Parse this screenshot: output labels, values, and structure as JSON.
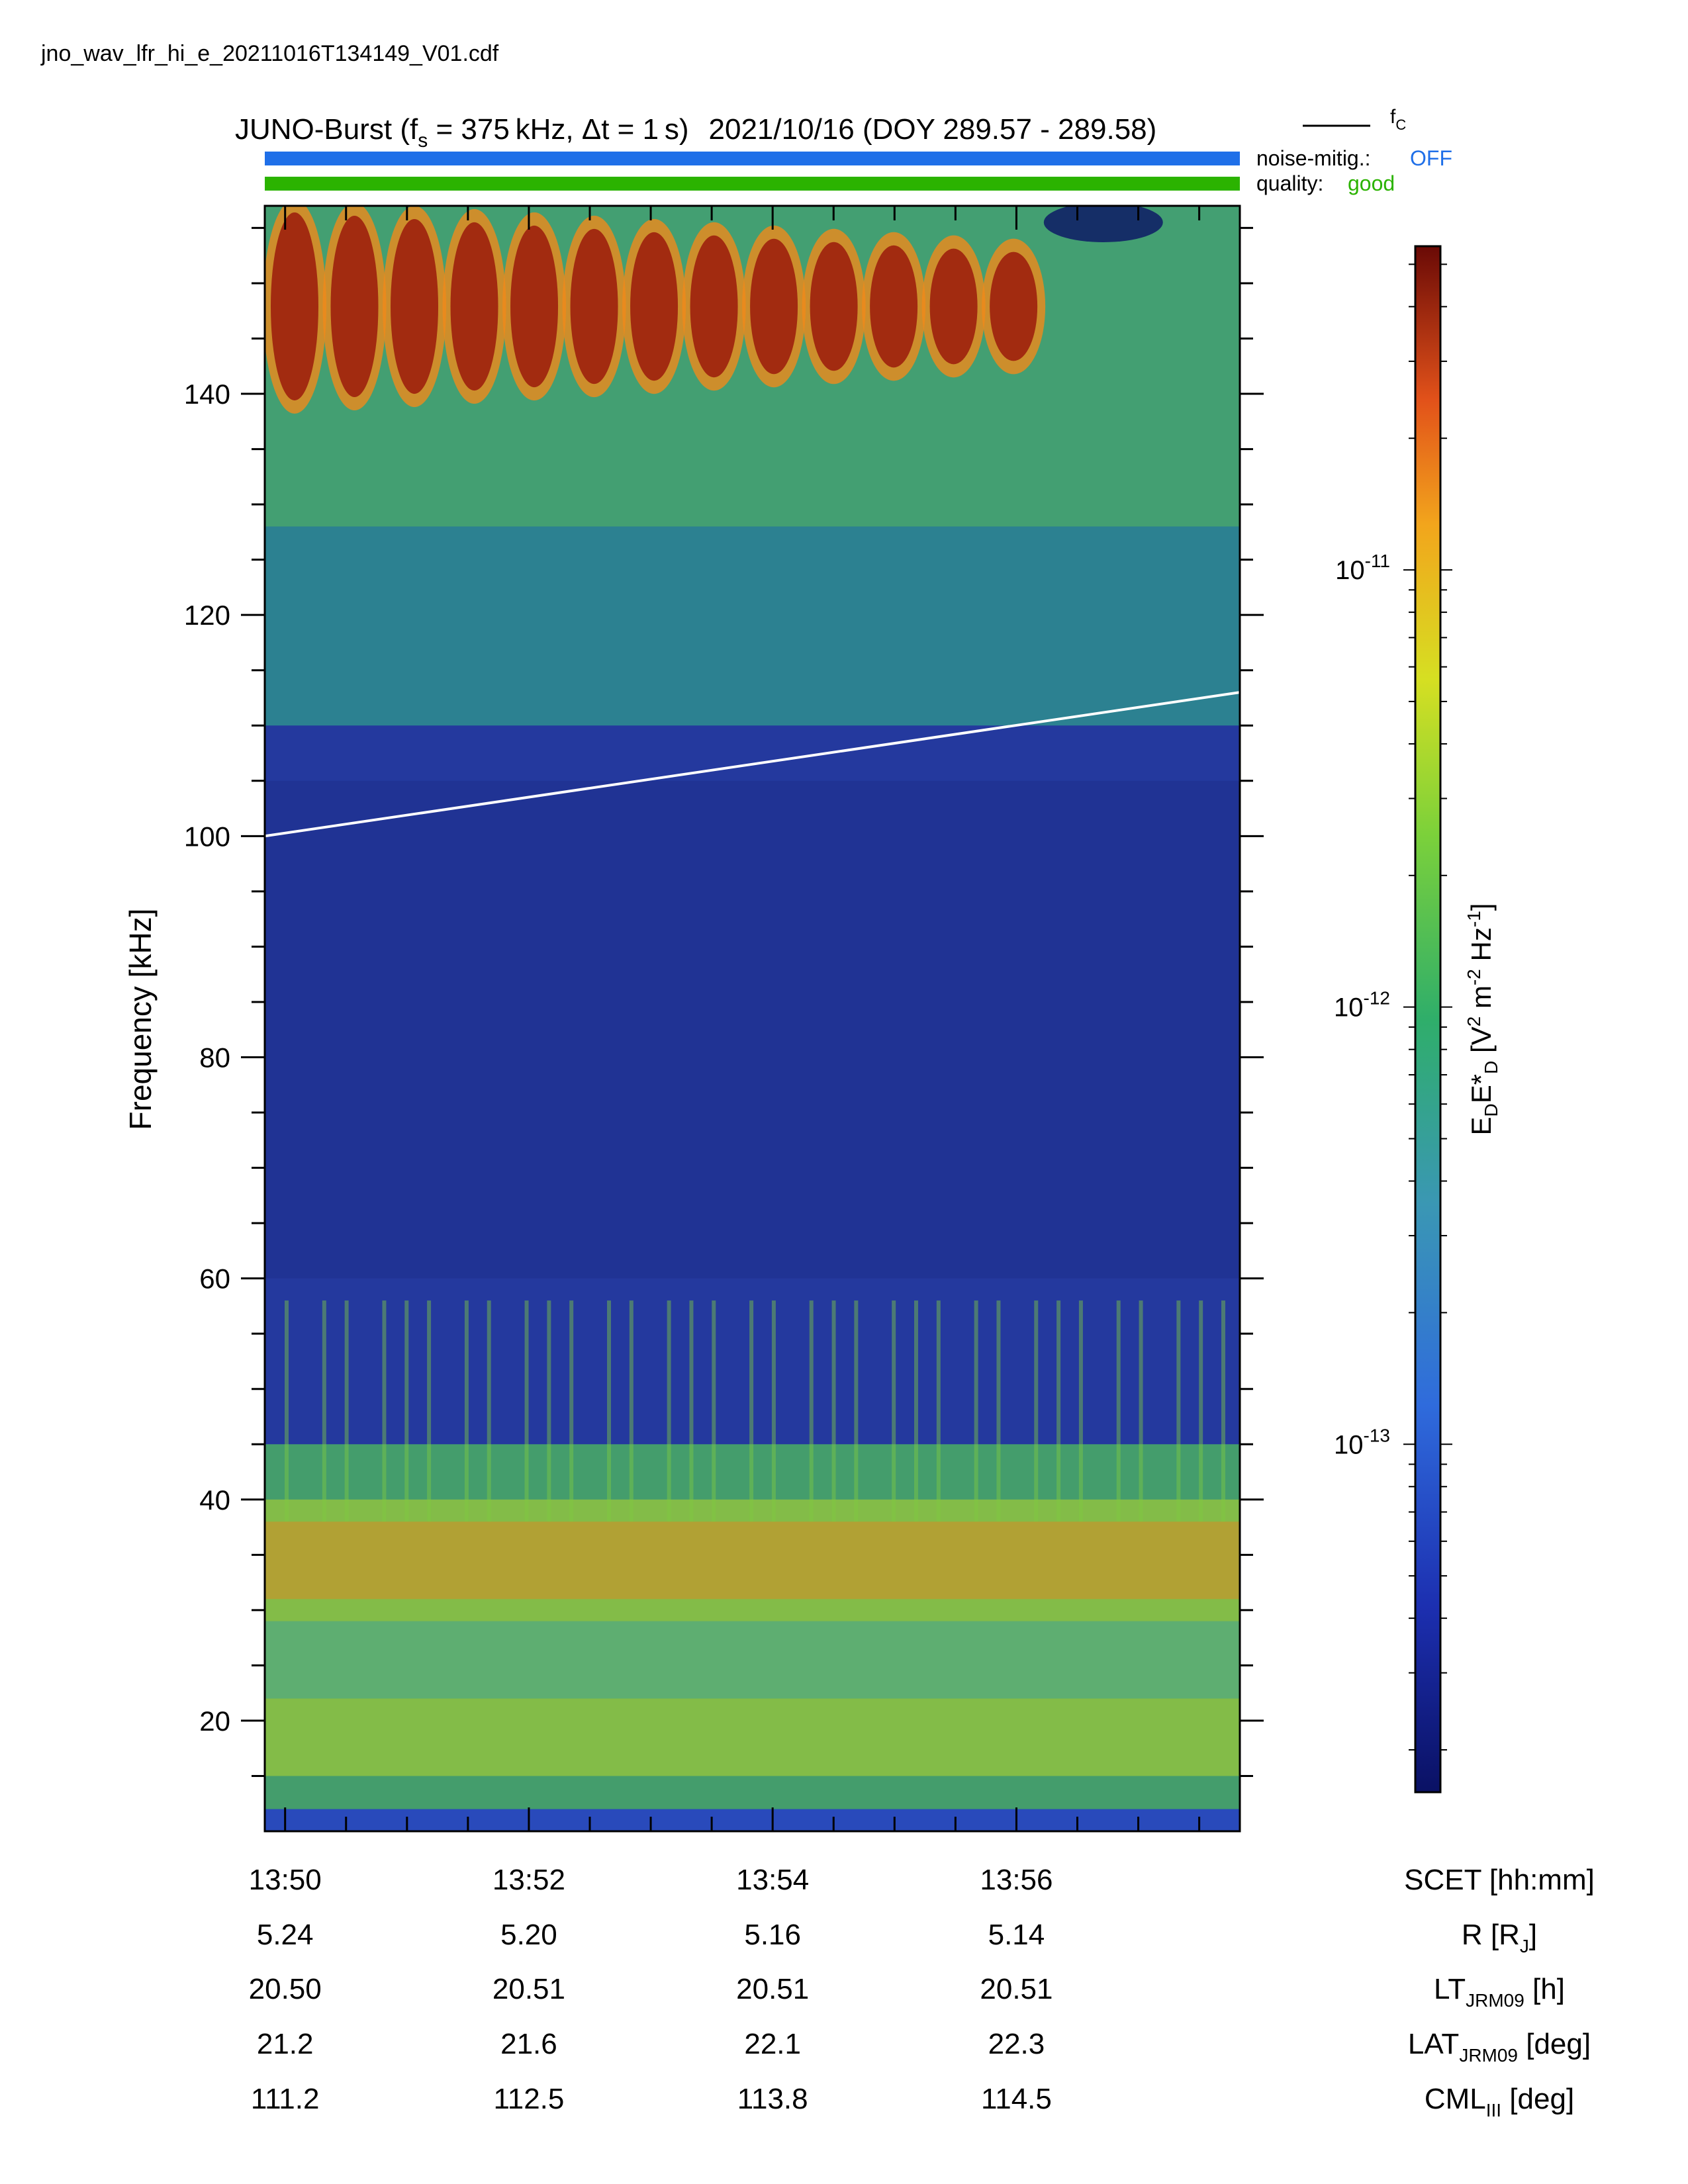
{
  "filename": "jno_wav_lfr_hi_e_20211016T134149_V01.cdf",
  "title": {
    "prefix": "JUNO-Burst (f",
    "fs_sub": "s",
    "fs_val": " = 375 kHz, Δt = 1 s)",
    "date": "2021/10/16 (DOY 289.57 - 289.58)"
  },
  "fc_legend": {
    "label": "f",
    "sub": "C",
    "color": "#000000"
  },
  "noise_bar": {
    "label": "noise-mitig.:",
    "value": "OFF",
    "color": "#1f6fe8"
  },
  "quality_bar": {
    "label": "quality:",
    "value": "good",
    "color": "#2bb300"
  },
  "chart_data": {
    "type": "heatmap",
    "title": "",
    "ylabel": "Frequency [kHz]",
    "ylim": [
      10,
      157
    ],
    "y_ticks": [
      20,
      40,
      60,
      80,
      100,
      120,
      140
    ],
    "x_range_minutes": [
      "13:49:50",
      "13:57:50"
    ],
    "x_ticks": [
      "13:50",
      "13:52",
      "13:54",
      "13:56"
    ],
    "fc_line": {
      "name": "fC",
      "time": [
        "13:49:50",
        "13:57:50"
      ],
      "freq_khz": [
        100,
        113
      ],
      "color": "#ffffff"
    },
    "colorbar": {
      "label": "E_D E*_D [V^2 m^-2 Hz^-1]",
      "scale": "log",
      "range": [
        1.6e-14,
        5.5e-11
      ],
      "ticks": [
        "1e-11",
        "1e-12",
        "1e-13"
      ],
      "colormap": "jet"
    },
    "features": [
      {
        "name": "upper band",
        "freq_khz": [
          140,
          157
        ],
        "level": "high",
        "time_end": "13:56:10"
      },
      {
        "name": "lower band",
        "freq_khz": [
          12,
          60
        ],
        "level": "medium-high",
        "peak_khz": 35
      },
      {
        "name": "quiet region",
        "freq_khz": [
          60,
          110
        ],
        "level": "low"
      }
    ]
  },
  "ephemeris": {
    "columns": [
      "13:50",
      "13:52",
      "13:54",
      "13:56"
    ],
    "rows": [
      {
        "label_main": "SCET [hh:mm]",
        "label_sub": "",
        "label_tail": "",
        "values": [
          "13:50",
          "13:52",
          "13:54",
          "13:56"
        ]
      },
      {
        "label_main": "R [R",
        "label_sub": "J",
        "label_tail": "]",
        "values": [
          "5.24",
          "5.20",
          "5.16",
          "5.14"
        ]
      },
      {
        "label_main": "LT",
        "label_sub": "JRM09",
        "label_tail": " [h]",
        "values": [
          "20.50",
          "20.51",
          "20.51",
          "20.51"
        ]
      },
      {
        "label_main": "LAT",
        "label_sub": "JRM09",
        "label_tail": " [deg]",
        "values": [
          "21.2",
          "21.6",
          "22.1",
          "22.3"
        ]
      },
      {
        "label_main": "CML",
        "label_sub": "III",
        "label_tail": " [deg]",
        "values": [
          "111.2",
          "112.5",
          "113.8",
          "114.5"
        ]
      }
    ]
  }
}
